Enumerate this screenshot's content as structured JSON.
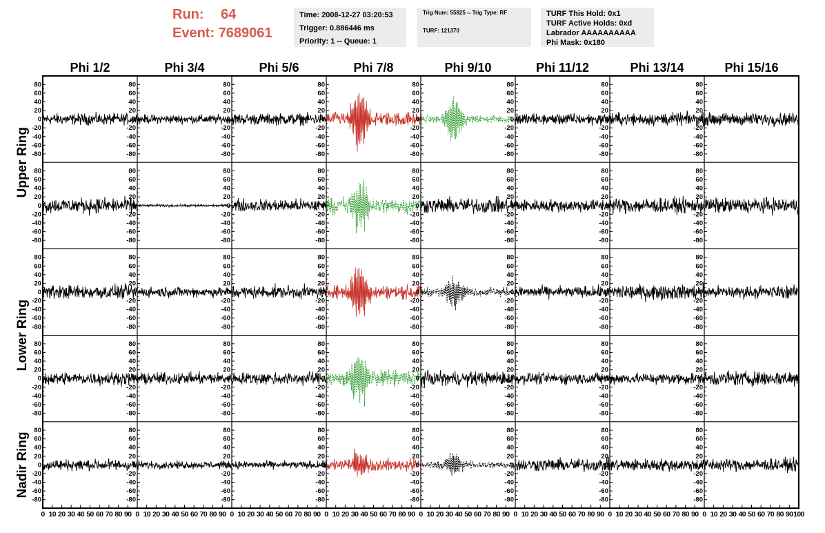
{
  "header": {
    "run_label": "Run:",
    "run_value": "64",
    "event_label": "Event:",
    "event_value": "7689061",
    "info_time": "Time: 2008-12-27 03:20:53",
    "info_trigger": "Trigger: 0.886446 ms",
    "info_priority": "Priority: 1 -- Queue: 1",
    "info_trignum": "Trig Num: 55825 -- Trig Type: RF",
    "info_turf": "TURF: 121370",
    "info_hold": "TURF This Hold: 0x1",
    "info_active": "TURF Active Holds: 0xd",
    "info_labrador": "Labrador AAAAAAAAAA",
    "info_phimask": "Phi Mask: 0x180"
  },
  "colors": {
    "header_text": "#d65a52",
    "info_background": "#ececec",
    "trace_default": "#000000",
    "trace_red": "#c8372f",
    "trace_green": "#2a9a2a"
  },
  "chart_data": {
    "type": "line",
    "columns": [
      "Phi 1/2",
      "Phi 3/4",
      "Phi 5/6",
      "Phi 7/8",
      "Phi 9/10",
      "Phi 11/12",
      "Phi 13/14",
      "Phi 15/16"
    ],
    "rows": [
      "Upper Ring",
      "",
      "Lower Ring",
      "",
      "Nadir Ring"
    ],
    "x_range": [
      0,
      100
    ],
    "y_range": [
      -90,
      90
    ],
    "x_tick_labels": [
      "0",
      "10",
      "20",
      "30",
      "40",
      "50",
      "60",
      "70",
      "80",
      "90",
      "100"
    ],
    "y_tick_labels": [
      "80",
      "60",
      "40",
      "20",
      "0",
      "-20",
      "-40",
      "-60",
      "-80"
    ],
    "grid": false,
    "panels": [
      [
        {
          "style": "black",
          "amp": 9
        },
        {
          "style": "black",
          "amp": 7
        },
        {
          "style": "black",
          "amp": 9
        },
        {
          "style": "red",
          "amp": 11,
          "pulse": 70
        },
        {
          "style": "green",
          "amp": 6,
          "pulse": 55
        },
        {
          "style": "black",
          "amp": 9
        },
        {
          "style": "black",
          "amp": 10
        },
        {
          "style": "black",
          "amp": 10
        }
      ],
      [
        {
          "style": "black",
          "amp": 12
        },
        {
          "style": "black",
          "amp": 2
        },
        {
          "style": "black",
          "amp": 10
        },
        {
          "style": "green",
          "amp": 13,
          "pulse": 65
        },
        {
          "style": "black",
          "amp": 12
        },
        {
          "style": "black",
          "amp": 10
        },
        {
          "style": "black",
          "amp": 12
        },
        {
          "style": "black",
          "amp": 12
        }
      ],
      [
        {
          "style": "black",
          "amp": 11
        },
        {
          "style": "black",
          "amp": 8
        },
        {
          "style": "black",
          "amp": 10
        },
        {
          "style": "red",
          "amp": 11,
          "pulse": 70
        },
        {
          "style": "black-dotted",
          "amp": 7,
          "pulse": 40
        },
        {
          "style": "black",
          "amp": 9
        },
        {
          "style": "black",
          "amp": 12
        },
        {
          "style": "black",
          "amp": 10
        }
      ],
      [
        {
          "style": "black",
          "amp": 10
        },
        {
          "style": "black",
          "amp": 9
        },
        {
          "style": "black",
          "amp": 10
        },
        {
          "style": "green",
          "amp": 13,
          "pulse": 65
        },
        {
          "style": "black",
          "amp": 11
        },
        {
          "style": "black",
          "amp": 9
        },
        {
          "style": "black",
          "amp": 9
        },
        {
          "style": "black",
          "amp": 12
        }
      ],
      [
        {
          "style": "black",
          "amp": 9
        },
        {
          "style": "black",
          "amp": 6
        },
        {
          "style": "black",
          "amp": 6
        },
        {
          "style": "red",
          "amp": 10,
          "pulse": 30
        },
        {
          "style": "black-dotted",
          "amp": 6,
          "pulse": 30
        },
        {
          "style": "black",
          "amp": 10
        },
        {
          "style": "black",
          "amp": 10
        },
        {
          "style": "black",
          "amp": 10
        }
      ]
    ]
  }
}
